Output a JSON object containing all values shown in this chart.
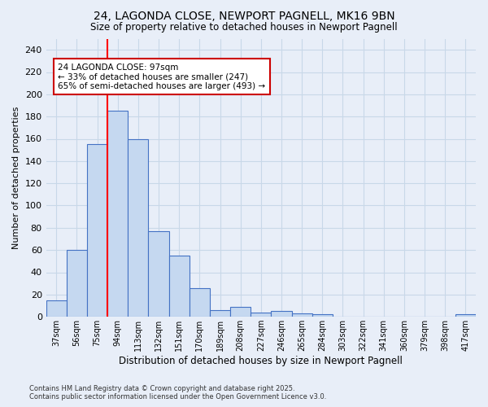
{
  "title1": "24, LAGONDA CLOSE, NEWPORT PAGNELL, MK16 9BN",
  "title2": "Size of property relative to detached houses in Newport Pagnell",
  "xlabel": "Distribution of detached houses by size in Newport Pagnell",
  "ylabel": "Number of detached properties",
  "categories": [
    "37sqm",
    "56sqm",
    "75sqm",
    "94sqm",
    "113sqm",
    "132sqm",
    "151sqm",
    "170sqm",
    "189sqm",
    "208sqm",
    "227sqm",
    "246sqm",
    "265sqm",
    "284sqm",
    "303sqm",
    "322sqm",
    "341sqm",
    "360sqm",
    "379sqm",
    "398sqm",
    "417sqm"
  ],
  "values": [
    15,
    60,
    155,
    185,
    160,
    77,
    55,
    26,
    6,
    9,
    4,
    5,
    3,
    2,
    0,
    0,
    0,
    0,
    0,
    0,
    2
  ],
  "bar_color": "#c5d8f0",
  "bar_edge_color": "#4472c4",
  "grid_color": "#c8d8e8",
  "background_color": "#e8eef8",
  "red_line_x": 3.0,
  "annotation_text": "24 LAGONDA CLOSE: 97sqm\n← 33% of detached houses are smaller (247)\n65% of semi-detached houses are larger (493) →",
  "annotation_box_color": "#ffffff",
  "annotation_box_edge": "#cc0000",
  "ylim": [
    0,
    250
  ],
  "yticks": [
    0,
    20,
    40,
    60,
    80,
    100,
    120,
    140,
    160,
    180,
    200,
    220,
    240
  ],
  "footer1": "Contains HM Land Registry data © Crown copyright and database right 2025.",
  "footer2": "Contains public sector information licensed under the Open Government Licence v3.0."
}
